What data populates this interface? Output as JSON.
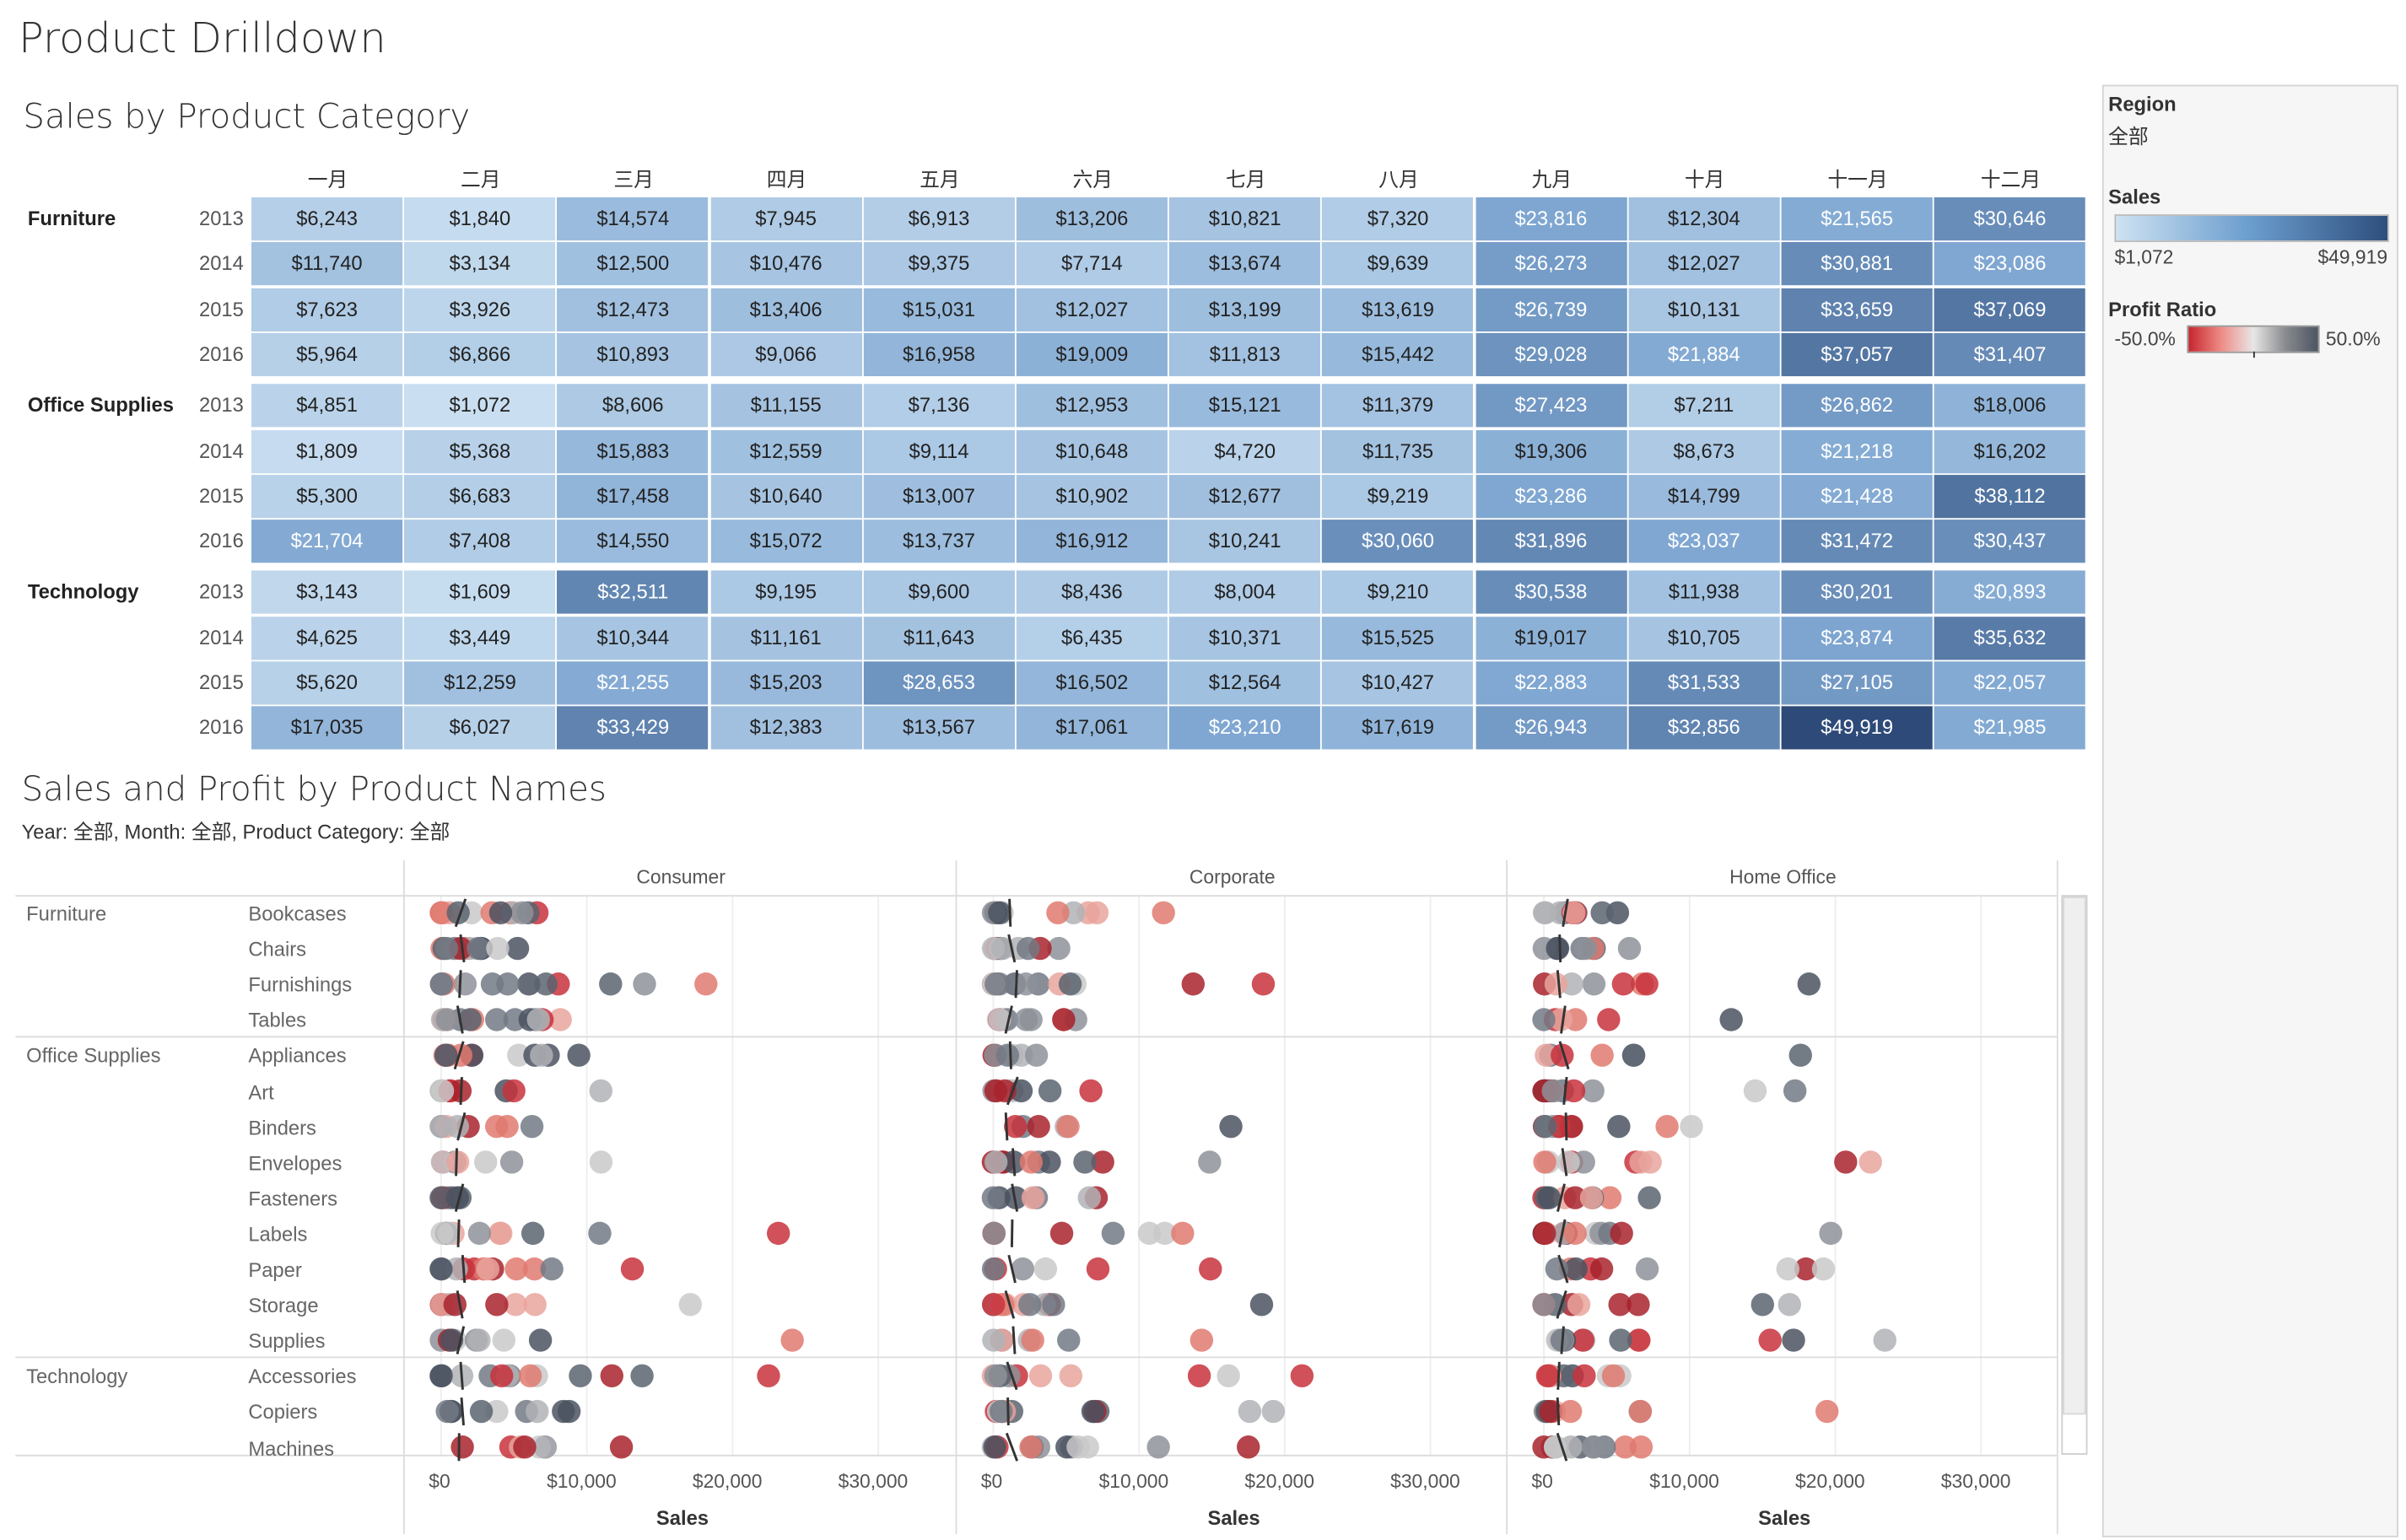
{
  "title": "Product Drilldown",
  "heatmap": {
    "title": "Sales by Product Category",
    "months": [
      "一月",
      "二月",
      "三月",
      "四月",
      "五月",
      "六月",
      "七月",
      "八月",
      "九月",
      "十月",
      "十一月",
      "十二月"
    ],
    "groups": [
      {
        "category": "Furniture",
        "rows": [
          {
            "year": "2013",
            "values": [
              "$6,243",
              "$1,840",
              "$14,574",
              "$7,945",
              "$6,913",
              "$13,206",
              "$10,821",
              "$7,320",
              "$23,816",
              "$12,304",
              "$21,565",
              "$30,646"
            ]
          },
          {
            "year": "2014",
            "values": [
              "$11,740",
              "$3,134",
              "$12,500",
              "$10,476",
              "$9,375",
              "$7,714",
              "$13,674",
              "$9,639",
              "$26,273",
              "$12,027",
              "$30,881",
              "$23,086"
            ]
          },
          {
            "year": "2015",
            "values": [
              "$7,623",
              "$3,926",
              "$12,473",
              "$13,406",
              "$15,031",
              "$12,027",
              "$13,199",
              "$13,619",
              "$26,739",
              "$10,131",
              "$33,659",
              "$37,069"
            ]
          },
          {
            "year": "2016",
            "values": [
              "$5,964",
              "$6,866",
              "$10,893",
              "$9,066",
              "$16,958",
              "$19,009",
              "$11,813",
              "$15,442",
              "$29,028",
              "$21,884",
              "$37,057",
              "$31,407"
            ]
          }
        ]
      },
      {
        "category": "Office Supplies",
        "rows": [
          {
            "year": "2013",
            "values": [
              "$4,851",
              "$1,072",
              "$8,606",
              "$11,155",
              "$7,136",
              "$12,953",
              "$15,121",
              "$11,379",
              "$27,423",
              "$7,211",
              "$26,862",
              "$18,006"
            ]
          },
          {
            "year": "2014",
            "values": [
              "$1,809",
              "$5,368",
              "$15,883",
              "$12,559",
              "$9,114",
              "$10,648",
              "$4,720",
              "$11,735",
              "$19,306",
              "$8,673",
              "$21,218",
              "$16,202"
            ]
          },
          {
            "year": "2015",
            "values": [
              "$5,300",
              "$6,683",
              "$17,458",
              "$10,640",
              "$13,007",
              "$10,902",
              "$12,677",
              "$9,219",
              "$23,286",
              "$14,799",
              "$21,428",
              "$38,112"
            ]
          },
          {
            "year": "2016",
            "values": [
              "$21,704",
              "$7,408",
              "$14,550",
              "$15,072",
              "$13,737",
              "$16,912",
              "$10,241",
              "$30,060",
              "$31,896",
              "$23,037",
              "$31,472",
              "$30,437"
            ]
          }
        ]
      },
      {
        "category": "Technology",
        "rows": [
          {
            "year": "2013",
            "values": [
              "$3,143",
              "$1,609",
              "$32,511",
              "$9,195",
              "$9,600",
              "$8,436",
              "$8,004",
              "$9,210",
              "$30,538",
              "$11,938",
              "$30,201",
              "$20,893"
            ]
          },
          {
            "year": "2014",
            "values": [
              "$4,625",
              "$3,449",
              "$10,344",
              "$11,161",
              "$11,643",
              "$6,435",
              "$10,371",
              "$15,525",
              "$19,017",
              "$10,705",
              "$23,874",
              "$35,632"
            ]
          },
          {
            "year": "2015",
            "values": [
              "$5,620",
              "$12,259",
              "$21,255",
              "$15,203",
              "$28,653",
              "$16,502",
              "$12,564",
              "$10,427",
              "$22,883",
              "$31,533",
              "$27,105",
              "$22,057"
            ]
          },
          {
            "year": "2016",
            "values": [
              "$17,035",
              "$6,027",
              "$33,429",
              "$12,383",
              "$13,567",
              "$17,061",
              "$23,210",
              "$17,619",
              "$26,943",
              "$32,856",
              "$49,919",
              "$21,985"
            ]
          }
        ]
      }
    ]
  },
  "scatter": {
    "title": "Sales and Profit by Product Names",
    "subtitle": "Year: 全部, Month: 全部, Product Category: 全部",
    "segments": [
      "Consumer",
      "Corporate",
      "Home Office"
    ],
    "categories": [
      {
        "name": "Furniture",
        "subcategories": [
          "Bookcases",
          "Chairs",
          "Furnishings",
          "Tables"
        ]
      },
      {
        "name": "Office Supplies",
        "subcategories": [
          "Appliances",
          "Art",
          "Binders",
          "Envelopes",
          "Fasteners",
          "Labels",
          "Paper",
          "Storage",
          "Supplies"
        ]
      },
      {
        "name": "Technology",
        "subcategories": [
          "Accessories",
          "Copiers",
          "Machines"
        ]
      }
    ],
    "x_ticks": [
      "$0",
      "$10,000",
      "$20,000",
      "$30,000"
    ],
    "x_axis_title": "Sales"
  },
  "filters": {
    "region_label": "Region",
    "region_value": "全部",
    "sales_label": "Sales",
    "sales_min": "$1,072",
    "sales_max": "$49,919",
    "profit_ratio_label": "Profit Ratio",
    "profit_ratio_min": "-50.0%",
    "profit_ratio_max": "50.0%"
  },
  "colors": {
    "sales_low": "#cde2f2",
    "sales_high": "#2e4f7d",
    "profit_negative": "#c6262e",
    "profit_neutral": "#e8e6e6",
    "profit_positive": "#4c5563"
  }
}
